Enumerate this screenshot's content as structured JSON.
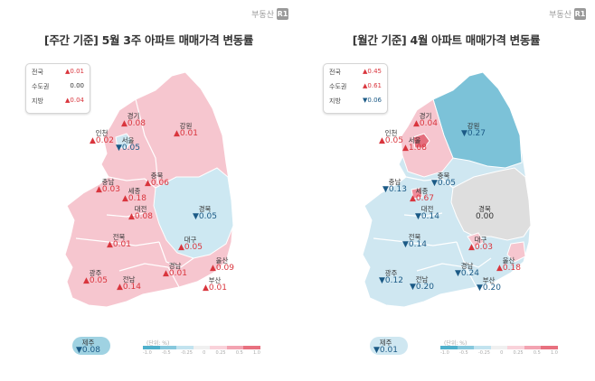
{
  "brand": {
    "text": "부동산",
    "badge": "R1"
  },
  "legend_unit": "(단위: %)",
  "legend_ticks": [
    "-1.0",
    "-0.5",
    "-0.25",
    "0",
    "0.25",
    "0.5",
    "1.0"
  ],
  "legend_colors": [
    "#4fb0cc",
    "#86c8dd",
    "#c2e3ef",
    "#f0f0f0",
    "#f9d2da",
    "#f3a3b1",
    "#e8707f"
  ],
  "colors": {
    "up": "#d9353d",
    "down": "#1b5a86"
  },
  "weekly": {
    "title": "[주간 기준] 5월 3주 아파트 매매가격 변동률",
    "summary": [
      {
        "name": "전국",
        "dir": "up",
        "value": "0.01"
      },
      {
        "name": "수도권",
        "dir": "zero",
        "value": "0.00"
      },
      {
        "name": "지방",
        "dir": "up",
        "value": "0.04"
      }
    ],
    "regions": {
      "gyeonggi": {
        "name": "경기",
        "dir": "up",
        "value": "0.08"
      },
      "gangwon": {
        "name": "강원",
        "dir": "up",
        "value": "0.01"
      },
      "incheon": {
        "name": "인천",
        "dir": "up",
        "value": "0.02"
      },
      "seoul": {
        "name": "서울",
        "dir": "down",
        "value": "0.05"
      },
      "chungbuk": {
        "name": "충북",
        "dir": "up",
        "value": "0.06"
      },
      "chungnam": {
        "name": "충남",
        "dir": "up",
        "value": "0.03"
      },
      "sejong": {
        "name": "세종",
        "dir": "up",
        "value": "0.18"
      },
      "daejeon": {
        "name": "대전",
        "dir": "up",
        "value": "0.08"
      },
      "gyeongbuk": {
        "name": "경북",
        "dir": "down",
        "value": "0.05"
      },
      "jeonbuk": {
        "name": "전북",
        "dir": "up",
        "value": "0.01"
      },
      "daegu": {
        "name": "대구",
        "dir": "up",
        "value": "0.05"
      },
      "ulsan": {
        "name": "울산",
        "dir": "up",
        "value": "0.09"
      },
      "gyeongnam": {
        "name": "경남",
        "dir": "up",
        "value": "0.01"
      },
      "gwangju": {
        "name": "광주",
        "dir": "up",
        "value": "0.05"
      },
      "jeonnam": {
        "name": "전남",
        "dir": "up",
        "value": "0.14"
      },
      "busan": {
        "name": "부산",
        "dir": "up",
        "value": "0.01"
      },
      "jeju": {
        "name": "제주",
        "dir": "down",
        "value": "0.08"
      }
    }
  },
  "monthly": {
    "title": "[월간 기준] 4월 아파트 매매가격 변동률",
    "summary": [
      {
        "name": "전국",
        "dir": "up",
        "value": "0.45"
      },
      {
        "name": "수도권",
        "dir": "up",
        "value": "0.61"
      },
      {
        "name": "지방",
        "dir": "down",
        "value": "0.06"
      }
    ],
    "regions": {
      "gyeonggi": {
        "name": "경기",
        "dir": "up",
        "value": "0.04"
      },
      "gangwon": {
        "name": "강원",
        "dir": "down",
        "value": "0.27"
      },
      "incheon": {
        "name": "인천",
        "dir": "up",
        "value": "0.05"
      },
      "seoul": {
        "name": "서울",
        "dir": "up",
        "value": "1.08"
      },
      "chungbuk": {
        "name": "충북",
        "dir": "down",
        "value": "0.05"
      },
      "chungnam": {
        "name": "충남",
        "dir": "down",
        "value": "0.13"
      },
      "sejong": {
        "name": "세종",
        "dir": "up",
        "value": "0.67"
      },
      "daejeon": {
        "name": "대전",
        "dir": "down",
        "value": "0.14"
      },
      "gyeongbuk": {
        "name": "경북",
        "dir": "zero",
        "value": "0.00"
      },
      "jeonbuk": {
        "name": "전북",
        "dir": "down",
        "value": "0.14"
      },
      "daegu": {
        "name": "대구",
        "dir": "up",
        "value": "0.03"
      },
      "ulsan": {
        "name": "울산",
        "dir": "up",
        "value": "0.18"
      },
      "gyeongnam": {
        "name": "경남",
        "dir": "down",
        "value": "0.24"
      },
      "gwangju": {
        "name": "광주",
        "dir": "down",
        "value": "0.12"
      },
      "jeonnam": {
        "name": "전남",
        "dir": "down",
        "value": "0.20"
      },
      "busan": {
        "name": "부산",
        "dir": "down",
        "value": "0.20"
      },
      "jeju": {
        "name": "제주",
        "dir": "down",
        "value": "0.01"
      }
    }
  }
}
